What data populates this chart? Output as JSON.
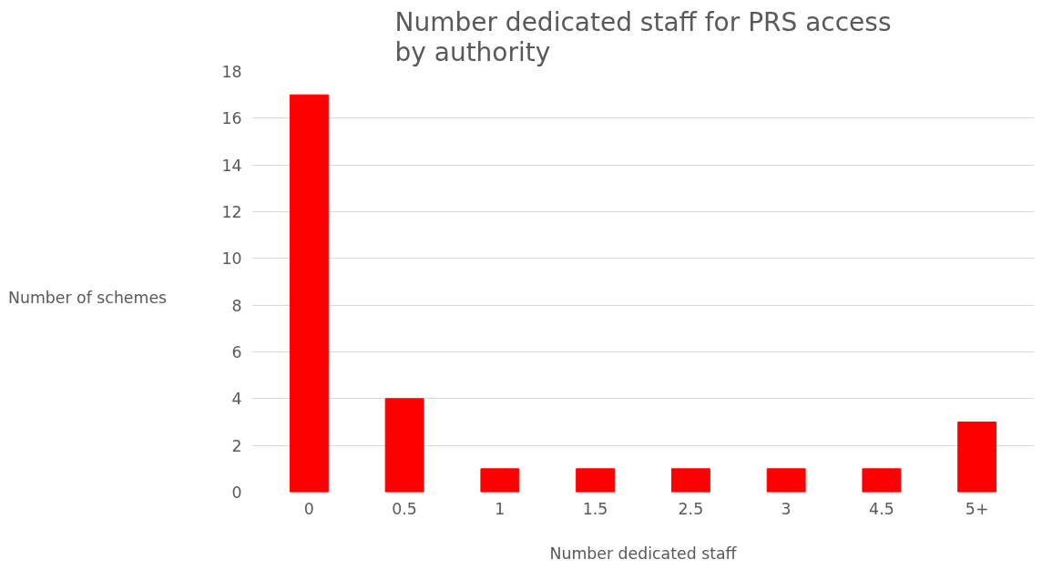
{
  "chart_data": {
    "type": "bar",
    "title": "Number dedicated staff for PRS access\nby authority",
    "xlabel": "Number dedicated staff",
    "ylabel": "Number of schemes",
    "categories": [
      "0",
      "0.5",
      "1",
      "1.5",
      "2.5",
      "3",
      "4.5",
      "5+"
    ],
    "values": [
      17,
      4,
      1,
      1,
      1,
      1,
      1,
      3
    ],
    "color": "#ff0000",
    "ylim": [
      0,
      18
    ],
    "yticks": [
      0,
      2,
      4,
      6,
      8,
      10,
      12,
      14,
      16,
      18
    ],
    "grid": "y"
  }
}
